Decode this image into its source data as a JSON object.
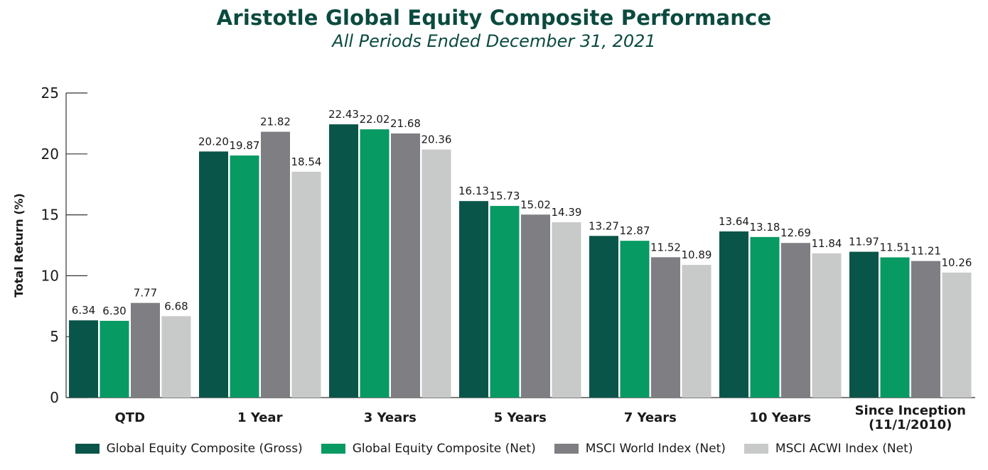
{
  "chart_data": {
    "type": "bar",
    "title": "Aristotle Global Equity Composite Performance",
    "subtitle": "All Periods Ended December 31, 2021",
    "ylabel": "Total Return (%)",
    "xlabel": "",
    "ylim": [
      0,
      25
    ],
    "yticks": [
      "0",
      "5",
      "10",
      "15",
      "20",
      "25"
    ],
    "categories": [
      [
        "QTD"
      ],
      [
        "1 Year"
      ],
      [
        "3 Years"
      ],
      [
        "5 Years"
      ],
      [
        "7 Years"
      ],
      [
        "10 Years"
      ],
      [
        "Since Inception",
        "(11/1/2010)"
      ]
    ],
    "series": [
      {
        "name": "Global Equity Composite (Gross)",
        "color": "#0a5549",
        "values": [
          6.34,
          20.2,
          22.43,
          16.13,
          13.27,
          13.64,
          11.97
        ],
        "labels": [
          "6.34",
          "20.20",
          "22.43",
          "16.13",
          "13.27",
          "13.64",
          "11.97"
        ]
      },
      {
        "name": "Global Equity Composite (Net)",
        "color": "#079a63",
        "values": [
          6.3,
          19.87,
          22.02,
          15.73,
          12.87,
          13.18,
          11.51
        ],
        "labels": [
          "6.30",
          "19.87",
          "22.02",
          "15.73",
          "12.87",
          "13.18",
          "11.51"
        ]
      },
      {
        "name": "MSCI World Index (Net)",
        "color": "#7e7e83",
        "values": [
          7.77,
          21.82,
          21.68,
          15.02,
          11.52,
          12.69,
          11.21
        ],
        "labels": [
          "7.77",
          "21.82",
          "21.68",
          "15.02",
          "11.52",
          "12.69",
          "11.21"
        ]
      },
      {
        "name": "MSCI ACWI Index (Net)",
        "color": "#c8c9c9",
        "values": [
          6.68,
          18.54,
          20.36,
          14.39,
          10.89,
          11.84,
          10.26
        ],
        "labels": [
          "6.68",
          "18.54",
          "20.36",
          "14.39",
          "10.89",
          "11.84",
          "10.26"
        ]
      }
    ],
    "legend_position": "bottom",
    "grid": false
  }
}
